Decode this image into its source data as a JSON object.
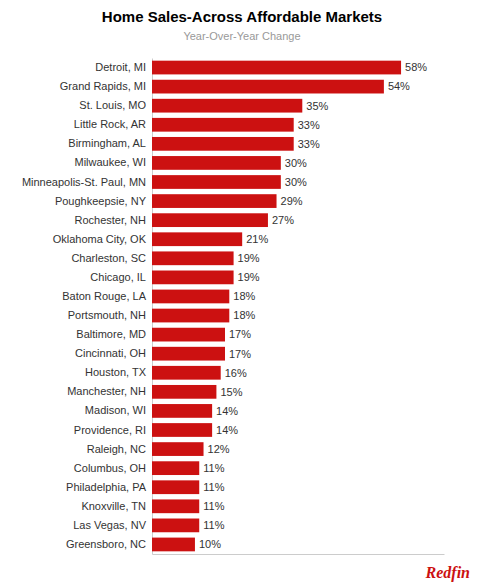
{
  "chart_data": {
    "type": "bar",
    "orientation": "horizontal",
    "title": "Home Sales-Across Affordable Markets",
    "subtitle": "Year-Over-Year Change",
    "categories": [
      "Detroit, MI",
      "Grand Rapids, MI",
      "St. Louis, MO",
      "Little Rock, AR",
      "Birmingham, AL",
      "Milwaukee, WI",
      "Minneapolis-St. Paul, MN",
      "Poughkeepsie, NY",
      "Rochester, NH",
      "Oklahoma City, OK",
      "Charleston, SC",
      "Chicago, IL",
      "Baton Rouge, LA",
      "Portsmouth, NH",
      "Baltimore, MD",
      "Cincinnati, OH",
      "Houston, TX",
      "Manchester, NH",
      "Madison, WI",
      "Providence, RI",
      "Raleigh, NC",
      "Columbus, OH",
      "Philadelphia, PA",
      "Knoxville, TN",
      "Las Vegas, NV",
      "Greensboro, NC"
    ],
    "values": [
      58,
      54,
      35,
      33,
      33,
      30,
      30,
      29,
      27,
      21,
      19,
      19,
      18,
      18,
      17,
      17,
      16,
      15,
      14,
      14,
      12,
      11,
      11,
      11,
      11,
      10
    ],
    "value_labels": [
      "58%",
      "54%",
      "35%",
      "33%",
      "33%",
      "30%",
      "30%",
      "29%",
      "27%",
      "21%",
      "19%",
      "19%",
      "18%",
      "18%",
      "17%",
      "17%",
      "16%",
      "15%",
      "14%",
      "14%",
      "12%",
      "11%",
      "11%",
      "11%",
      "11%",
      "10%"
    ],
    "data_labels": true,
    "color": "#CC1111",
    "xlim": [
      0,
      68
    ],
    "tick_labels": "y",
    "grid": false,
    "annotations": [
      {
        "text": "Redfin",
        "color": "#CC1111"
      }
    ]
  }
}
